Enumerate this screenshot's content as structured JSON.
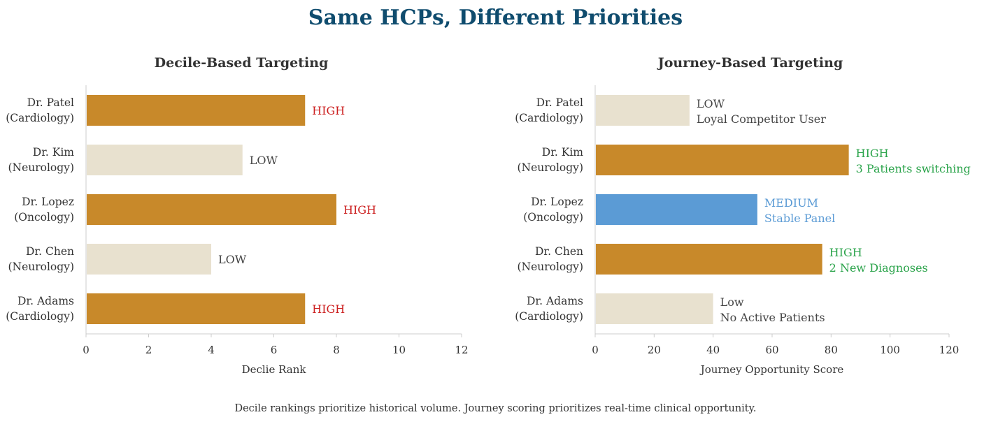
{
  "title": "Same HCPs, Different Priorities",
  "footnote": "Decile rankings prioritize historical volume. Journey scoring prioritizes real-time clinical opportunity.",
  "colors": {
    "title": "#0f4c6e",
    "high_bar": "#c8892a",
    "low_bar": "#e8e1cf",
    "medium_bar": "#5b9bd5",
    "high_text_decile": "#cc1f1f",
    "high_text_journey": "#2aa34a",
    "medium_text": "#5b9bd5",
    "low_text": "#444444",
    "axis": "#cccccc"
  },
  "chart_data": [
    {
      "type": "bar",
      "orientation": "horizontal",
      "title": "Decile-Based Targeting",
      "xlabel": "Declie Rank",
      "ylabel": "",
      "xlim": [
        0,
        12
      ],
      "xticks": [
        0,
        2,
        4,
        6,
        8,
        10,
        12
      ],
      "grid": false,
      "categories": [
        [
          "Dr. Patel",
          "(Cardiology)"
        ],
        [
          "Dr. Kim",
          "(Neurology)"
        ],
        [
          "Dr. Lopez",
          "(Oncology)"
        ],
        [
          "Dr. Chen",
          "(Neurology)"
        ],
        [
          "Dr. Adams",
          "(Cardiology)"
        ]
      ],
      "values": [
        7,
        5,
        8,
        4,
        7
      ],
      "levels": [
        "high",
        "low",
        "high",
        "low",
        "high"
      ],
      "labels": [
        [
          "HIGH"
        ],
        [
          "LOW"
        ],
        [
          "HIGH"
        ],
        [
          "LOW"
        ],
        [
          "HIGH"
        ]
      ]
    },
    {
      "type": "bar",
      "orientation": "horizontal",
      "title": "Journey-Based Targeting",
      "xlabel": "Journey Opportunity Score",
      "ylabel": "",
      "xlim": [
        0,
        120
      ],
      "xticks": [
        0,
        20,
        40,
        60,
        80,
        100,
        120
      ],
      "grid": false,
      "categories": [
        [
          "Dr. Patel",
          "(Cardiology)"
        ],
        [
          "Dr. Kim",
          "(Neurology)"
        ],
        [
          "Dr. Lopez",
          "(Oncology)"
        ],
        [
          "Dr. Chen",
          "(Neurology)"
        ],
        [
          "Dr. Adams",
          "(Cardiology)"
        ]
      ],
      "values": [
        32,
        86,
        55,
        77,
        40
      ],
      "levels": [
        "low",
        "high",
        "medium",
        "high",
        "low"
      ],
      "labels": [
        [
          "LOW",
          "Loyal Competitor User"
        ],
        [
          "HIGH",
          "3 Patients switching"
        ],
        [
          "MEDIUM",
          "Stable Panel"
        ],
        [
          "HIGH",
          "2 New Diagnoses"
        ],
        [
          "Low",
          "No Active Patients"
        ]
      ]
    }
  ]
}
